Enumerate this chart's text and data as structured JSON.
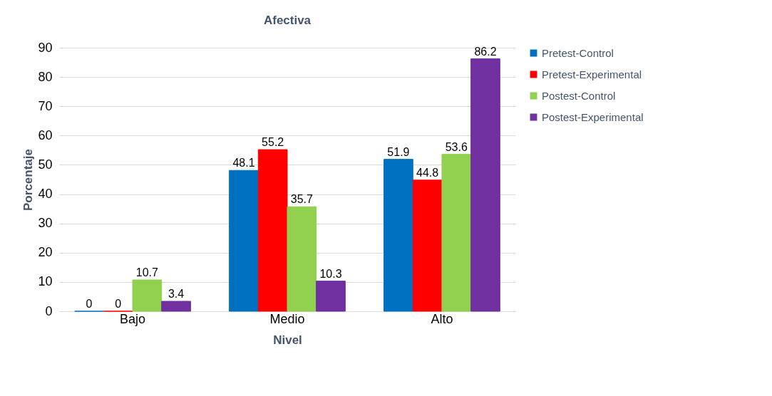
{
  "chart_data": {
    "type": "bar",
    "title": "Afectiva",
    "xlabel": "Nivel",
    "ylabel": "Porcentaje",
    "categories": [
      "Bajo",
      "Medio",
      "Alto"
    ],
    "series": [
      {
        "name": "Pretest-Control",
        "color": "#0070c0",
        "values": [
          0,
          48.1,
          51.9
        ]
      },
      {
        "name": "Pretest-Experimental",
        "color": "#ff0000",
        "values": [
          0,
          55.2,
          44.8
        ]
      },
      {
        "name": "Postest-Control",
        "color": "#92d050",
        "values": [
          10.7,
          35.7,
          53.6
        ]
      },
      {
        "name": "Postest-Experimental",
        "color": "#7030a0",
        "values": [
          3.4,
          10.3,
          86.2
        ]
      }
    ],
    "ylim": [
      0,
      90
    ],
    "yticks": [
      0,
      10,
      20,
      30,
      40,
      50,
      60,
      70,
      80,
      90
    ],
    "grid": "y",
    "legend": "right",
    "data_labels": true
  }
}
